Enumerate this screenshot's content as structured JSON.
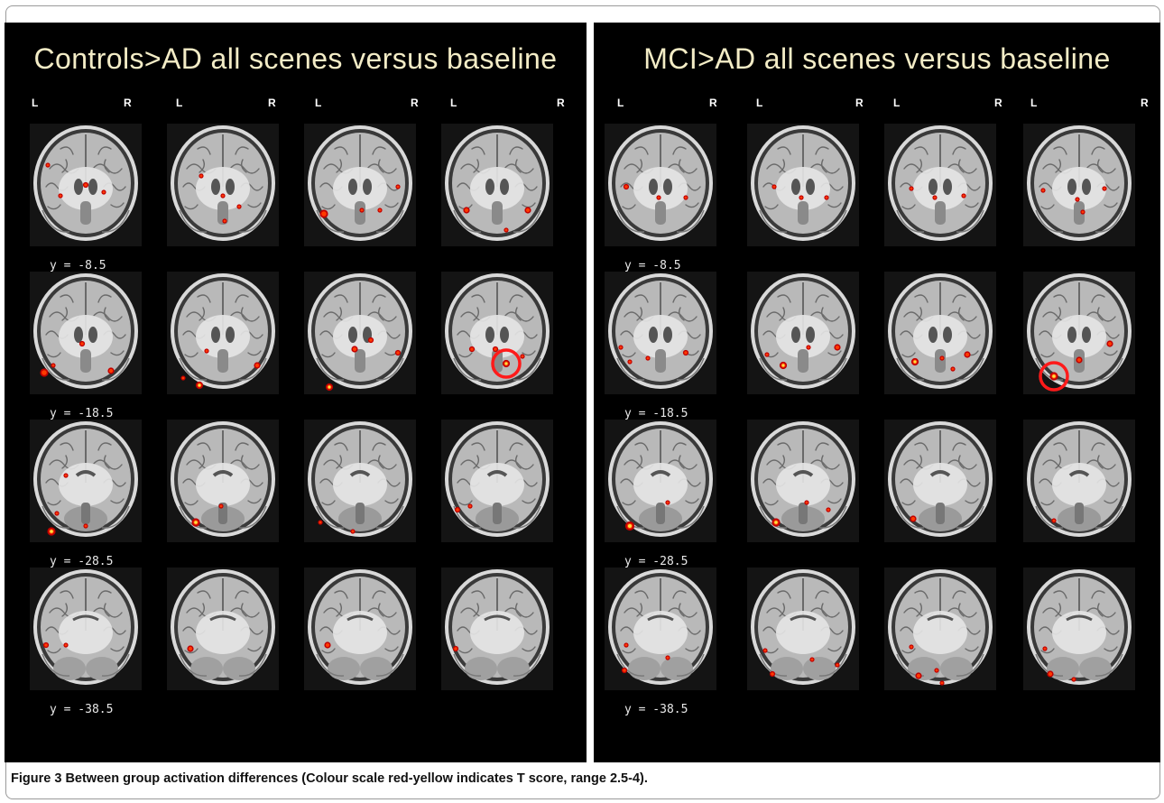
{
  "caption": {
    "label": "Figure 3",
    "text": "Between group activation differences (Colour scale red-yellow indicates T score, range 2.5-4)."
  },
  "panels": [
    {
      "id": "left",
      "title": "Controls>AD all scenes versus baseline",
      "left_marker": "L",
      "right_marker": "R",
      "rows": [
        {
          "label": "y = -8.5",
          "variant": "front",
          "blobs": [
            [
              [
                20,
                46,
                2
              ],
              [
                62,
                68,
                2.5
              ],
              [
                34,
                80,
                2
              ],
              [
                82,
                76,
                2
              ]
            ],
            [
              [
                38,
                58,
                2
              ],
              [
                62,
                80,
                2
              ],
              [
                80,
                92,
                2
              ],
              [
                64,
                108,
                2
              ]
            ],
            [
              [
                22,
                100,
                4
              ],
              [
                64,
                96,
                2
              ],
              [
                84,
                96,
                2
              ],
              [
                104,
                70,
                2
              ]
            ],
            [
              [
                28,
                96,
                3
              ],
              [
                96,
                96,
                3
              ],
              [
                72,
                118,
                2
              ]
            ]
          ]
        },
        {
          "label": "y = -18.5",
          "variant": "mid",
          "blobs": [
            [
              [
                16,
                112,
                4
              ],
              [
                58,
                80,
                2.5
              ],
              [
                26,
                104,
                2
              ],
              [
                90,
                110,
                3
              ]
            ],
            [
              [
                44,
                88,
                2
              ],
              [
                18,
                118,
                2
              ],
              [
                36,
                126,
                3.5,
                1
              ],
              [
                100,
                104,
                3
              ]
            ],
            [
              [
                28,
                128,
                3.5,
                1
              ],
              [
                56,
                86,
                3
              ],
              [
                74,
                76,
                2.5
              ],
              [
                104,
                90,
                2.5
              ]
            ],
            [
              [
                34,
                86,
                2.5
              ],
              [
                60,
                86,
                2.5
              ],
              [
                90,
                94,
                2
              ],
              [
                72,
                102,
                3.5,
                1
              ]
            ]
          ]
        },
        {
          "label": "y = -28.5",
          "variant": "back",
          "blobs": [
            [
              [
                40,
                62,
                2
              ],
              [
                30,
                104,
                2
              ],
              [
                24,
                124,
                4,
                1
              ],
              [
                62,
                118,
                2
              ]
            ],
            [
              [
                32,
                114,
                4,
                1
              ],
              [
                60,
                96,
                2
              ]
            ],
            [
              [
                54,
                124,
                2
              ],
              [
                18,
                114,
                2
              ]
            ],
            [
              [
                18,
                100,
                2.5
              ],
              [
                32,
                96,
                2
              ]
            ]
          ]
        },
        {
          "label": "y = -38.5",
          "variant": "post",
          "blobs": [
            [
              [
                18,
                86,
                2.5
              ],
              [
                40,
                86,
                2
              ]
            ],
            [
              [
                26,
                90,
                3
              ]
            ],
            [
              [
                26,
                86,
                3
              ]
            ],
            [
              [
                16,
                90,
                2.5
              ]
            ]
          ]
        }
      ],
      "highlight": {
        "row": 1,
        "col": 3
      }
    },
    {
      "id": "right",
      "title": "MCI>AD all scenes versus baseline",
      "left_marker": "L",
      "right_marker": "R",
      "rows": [
        {
          "label": "y = -8.5",
          "variant": "front",
          "blobs": [
            [
              [
                24,
                70,
                2.5
              ],
              [
                60,
                82,
                2
              ],
              [
                90,
                82,
                2
              ]
            ],
            [
              [
                30,
                70,
                2
              ],
              [
                60,
                82,
                2
              ],
              [
                88,
                82,
                2
              ]
            ],
            [
              [
                30,
                72,
                2
              ],
              [
                56,
                82,
                2
              ],
              [
                88,
                80,
                2
              ]
            ],
            [
              [
                22,
                74,
                2
              ],
              [
                60,
                84,
                2
              ],
              [
                90,
                72,
                2
              ],
              [
                66,
                98,
                2
              ]
            ]
          ]
        },
        {
          "label": "y = -18.5",
          "variant": "mid",
          "blobs": [
            [
              [
                18,
                84,
                2
              ],
              [
                28,
                100,
                2
              ],
              [
                48,
                96,
                2
              ],
              [
                90,
                90,
                2.5
              ]
            ],
            [
              [
                22,
                92,
                2
              ],
              [
                40,
                104,
                3.5,
                1
              ],
              [
                68,
                84,
                2
              ],
              [
                100,
                84,
                3
              ]
            ],
            [
              [
                34,
                100,
                3.5,
                1
              ],
              [
                64,
                96,
                2
              ],
              [
                92,
                92,
                3
              ],
              [
                76,
                108,
                2
              ]
            ],
            [
              [
                34,
                116,
                4,
                1
              ],
              [
                62,
                98,
                3
              ],
              [
                96,
                80,
                3
              ]
            ]
          ]
        },
        {
          "label": "y = -28.5",
          "variant": "back",
          "blobs": [
            [
              [
                28,
                118,
                4.5,
                1
              ],
              [
                70,
                92,
                2
              ]
            ],
            [
              [
                32,
                114,
                4,
                1
              ],
              [
                66,
                92,
                2
              ],
              [
                90,
                100,
                2
              ]
            ],
            [
              [
                32,
                110,
                3
              ]
            ],
            [
              [
                34,
                112,
                2
              ]
            ]
          ]
        },
        {
          "label": "y = -38.5",
          "variant": "post",
          "blobs": [
            [
              [
                24,
                86,
                2
              ],
              [
                22,
                114,
                2.5
              ],
              [
                70,
                100,
                2
              ]
            ],
            [
              [
                20,
                92,
                2
              ],
              [
                28,
                118,
                2.5
              ],
              [
                72,
                102,
                2
              ],
              [
                100,
                108,
                2
              ]
            ],
            [
              [
                30,
                88,
                2
              ],
              [
                38,
                120,
                3
              ],
              [
                58,
                114,
                2
              ],
              [
                64,
                128,
                2
              ]
            ],
            [
              [
                24,
                90,
                2
              ],
              [
                30,
                118,
                3
              ],
              [
                56,
                124,
                2
              ]
            ]
          ]
        }
      ],
      "highlight": {
        "row": 1,
        "col": 3
      }
    }
  ],
  "colors": {
    "panel_background": "#000000",
    "title_text": "#f3ecc6",
    "activation_low": "#e00000",
    "activation_high": "#ffe040",
    "highlight_circle": "#ff1a1a"
  }
}
